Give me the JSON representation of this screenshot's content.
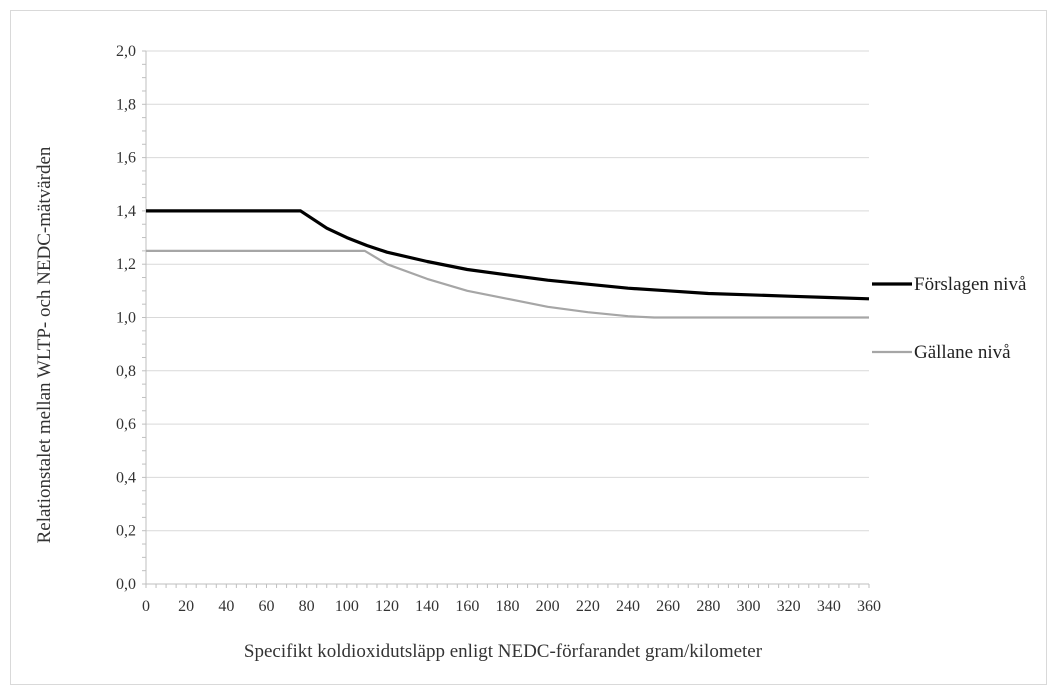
{
  "chart_data": {
    "type": "line",
    "title": "",
    "xlabel": "Specifikt koldioxidutsläpp enligt NEDC-förfarandet gram/kilometer",
    "ylabel": "Relationstalet mellan WLTP- och NEDC-mätvärden",
    "xlim": [
      0,
      360
    ],
    "ylim": [
      0,
      2
    ],
    "x_ticks": [
      "0",
      "20",
      "40",
      "60",
      "80",
      "100",
      "120",
      "140",
      "160",
      "180",
      "200",
      "220",
      "240",
      "260",
      "280",
      "300",
      "320",
      "340",
      "360"
    ],
    "y_ticks": [
      "0,0",
      "0,2",
      "0,4",
      "0,6",
      "0,8",
      "1,0",
      "1,2",
      "1,4",
      "1,6",
      "1,8",
      "2,0"
    ],
    "grid": "horizontal",
    "legend_position": "right",
    "series": [
      {
        "name": "Förslagen nivå",
        "color": "#000000",
        "x": [
          0,
          20,
          40,
          60,
          77,
          90,
          100,
          110,
          120,
          140,
          160,
          180,
          200,
          220,
          240,
          260,
          280,
          300,
          320,
          340,
          360
        ],
        "y": [
          1.4,
          1.4,
          1.4,
          1.4,
          1.4,
          1.335,
          1.3,
          1.27,
          1.245,
          1.21,
          1.18,
          1.16,
          1.14,
          1.125,
          1.11,
          1.1,
          1.09,
          1.085,
          1.08,
          1.075,
          1.07
        ]
      },
      {
        "name": "Gällane nivå",
        "color": "#a6a6a6",
        "x": [
          0,
          20,
          40,
          60,
          80,
          100,
          109,
          120,
          140,
          160,
          180,
          200,
          220,
          240,
          253,
          280,
          300,
          320,
          340,
          360
        ],
        "y": [
          1.25,
          1.25,
          1.25,
          1.25,
          1.25,
          1.25,
          1.25,
          1.2,
          1.145,
          1.1,
          1.07,
          1.04,
          1.02,
          1.005,
          1.0,
          1.0,
          1.0,
          1.0,
          1.0,
          1.0
        ]
      }
    ]
  }
}
